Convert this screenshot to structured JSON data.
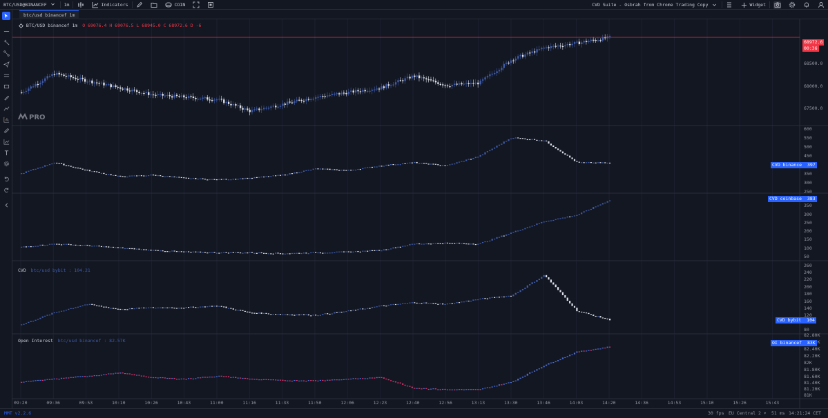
{
  "topbar": {
    "symbol": "BTC/USD@BINANCEF",
    "interval": "1m",
    "indicators_label": "Indicators",
    "coin_label": "COIN",
    "layout_title": "CVD Suite - Osbrah from Chrome Trading Copy",
    "widget_label": "Widget"
  },
  "tab": {
    "label": "btc/usd binancef 1m"
  },
  "main_legend": {
    "title": "BTC/USD binancef 1m",
    "ohlc": "O 69076.4  H 69076.5  L 68945.0  C 68972.6  D -6"
  },
  "logo": {
    "text": "PRO"
  },
  "price_pane": {
    "ticks": [
      "68500.0",
      "68000.0",
      "67500.0"
    ],
    "last_price": "68972.6",
    "countdown": "00:36"
  },
  "cvd_binance_pane": {
    "ticks": [
      "600",
      "550",
      "500",
      "450",
      "400",
      "350",
      "300",
      "250"
    ],
    "badge_label": "CVD binance",
    "badge_value": "397"
  },
  "cvd_coinbase_pane": {
    "ticks": [
      "350",
      "300",
      "250",
      "200",
      "150",
      "100",
      "50"
    ],
    "badge_label": "CVD coinbase",
    "badge_value": "383"
  },
  "cvd_bybit_pane": {
    "legend_title": "CVD",
    "legend_series": "btc/usd bybit : 104.21",
    "ticks": [
      "260",
      "240",
      "220",
      "200",
      "180",
      "160",
      "140",
      "120",
      "100",
      "80"
    ],
    "badge_label": "CVD bybit",
    "badge_value": "104"
  },
  "oi_pane": {
    "legend_title": "Open Interest",
    "legend_series": "btc/usd binancef : 82.57K",
    "ticks": [
      "82.80K",
      "82.60K",
      "82.40K",
      "82.20K",
      "82K",
      "81.80K",
      "81.60K",
      "81.40K",
      "81.20K",
      "81K"
    ],
    "badge_label": "OI binancef",
    "badge_value": "83K"
  },
  "time_axis": [
    "09:20",
    "09:36",
    "09:53",
    "10:10",
    "10:26",
    "10:43",
    "11:00",
    "11:16",
    "11:33",
    "11:50",
    "12:06",
    "12:23",
    "12:40",
    "12:56",
    "13:13",
    "13:30",
    "13:46",
    "14:03",
    "14:20",
    "14:36",
    "14:53",
    "15:10",
    "15:26",
    "15:43"
  ],
  "bottombar": {
    "version": "MMT v2.2.6",
    "fps": "30 fps",
    "region": "EU Central 2",
    "latency": "51 ms",
    "clock": "14:21:24 CET"
  },
  "colors": {
    "background": "#131722",
    "up_candle": "#3f5ba9",
    "down_candle": "#e0e3eb",
    "oi_up": "#4a6cd4",
    "oi_down": "#e8336f",
    "price_line": "#f23645",
    "badge_blue": "#2962ff"
  },
  "chart_data": [
    {
      "type": "candlestick",
      "title": "BTC/USD binancef 1m",
      "ylim": [
        67300,
        69150
      ],
      "x": [
        "09:20",
        "09:36",
        "09:53",
        "10:10",
        "10:26",
        "10:43",
        "11:00",
        "11:16",
        "11:33",
        "11:50",
        "12:06",
        "12:23",
        "12:40",
        "12:56",
        "13:13",
        "13:30",
        "13:46",
        "14:03",
        "14:20"
      ],
      "close": [
        67800,
        68200,
        68050,
        67900,
        67750,
        67700,
        67650,
        67400,
        67550,
        67700,
        67800,
        67900,
        68150,
        67950,
        68000,
        68500,
        68750,
        68850,
        68972.6
      ],
      "last": 68972.6
    },
    {
      "type": "line",
      "title": "CVD binance",
      "ylim": [
        230,
        610
      ],
      "x": [
        "09:20",
        "09:36",
        "09:53",
        "10:10",
        "10:26",
        "10:43",
        "11:00",
        "11:16",
        "11:33",
        "11:50",
        "12:06",
        "12:23",
        "12:40",
        "12:56",
        "13:13",
        "13:30",
        "13:46",
        "14:03",
        "14:20"
      ],
      "values": [
        330,
        400,
        350,
        310,
        320,
        300,
        290,
        300,
        320,
        360,
        350,
        380,
        400,
        380,
        440,
        560,
        540,
        400,
        397
      ]
    },
    {
      "type": "line",
      "title": "CVD coinbase",
      "ylim": [
        30,
        400
      ],
      "x": [
        "09:20",
        "09:36",
        "09:53",
        "10:10",
        "10:26",
        "10:43",
        "11:00",
        "11:16",
        "11:33",
        "11:50",
        "12:06",
        "12:23",
        "12:40",
        "12:56",
        "13:13",
        "13:30",
        "13:46",
        "14:03",
        "14:20"
      ],
      "values": [
        90,
        110,
        100,
        85,
        70,
        60,
        55,
        55,
        50,
        55,
        60,
        70,
        110,
        115,
        110,
        180,
        250,
        290,
        383
      ]
    },
    {
      "type": "line",
      "title": "CVD bybit",
      "ylim": [
        75,
        265
      ],
      "x": [
        "09:20",
        "09:36",
        "09:53",
        "10:10",
        "10:26",
        "10:43",
        "11:00",
        "11:16",
        "11:33",
        "11:50",
        "12:06",
        "12:23",
        "12:40",
        "12:56",
        "13:13",
        "13:30",
        "13:46",
        "14:03",
        "14:20"
      ],
      "values": [
        90,
        125,
        150,
        135,
        140,
        140,
        145,
        125,
        120,
        118,
        130,
        145,
        155,
        150,
        165,
        175,
        235,
        130,
        104.21
      ]
    },
    {
      "type": "line",
      "title": "Open Interest",
      "ylim": [
        80980,
        82860
      ],
      "x": [
        "09:20",
        "09:36",
        "09:53",
        "10:10",
        "10:26",
        "10:43",
        "11:00",
        "11:16",
        "11:33",
        "11:50",
        "12:06",
        "12:23",
        "12:40",
        "12:56",
        "13:13",
        "13:30",
        "13:46",
        "14:03",
        "14:20"
      ],
      "values": [
        81400,
        81500,
        81600,
        81700,
        81550,
        81500,
        81600,
        81500,
        81450,
        81450,
        81500,
        81550,
        81200,
        81150,
        81150,
        81400,
        81950,
        82400,
        82570
      ]
    }
  ]
}
